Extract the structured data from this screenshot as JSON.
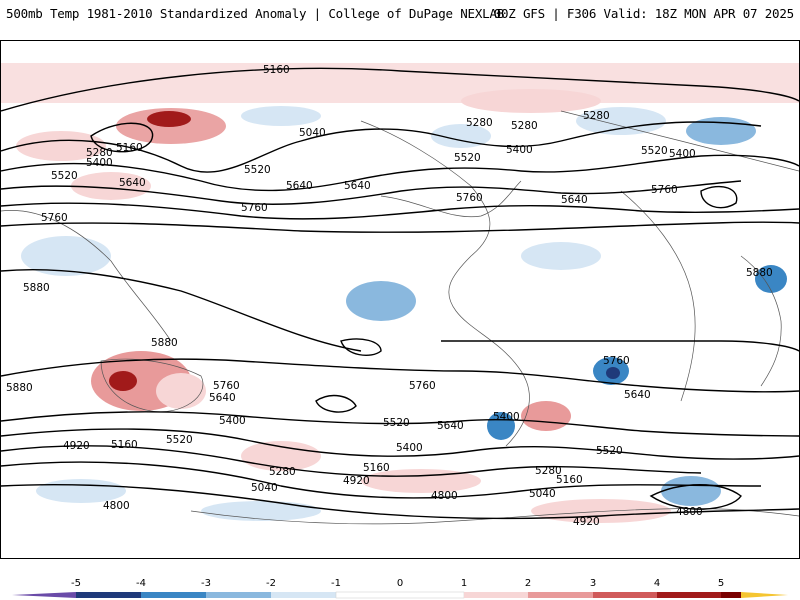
{
  "header": {
    "title": "500mb Temp 1981-2010 Standardized Anomaly | College of DuPage NEXLAB",
    "run_info": "00Z GFS | F306 Valid: 18Z MON APR 07 2025"
  },
  "colors": {
    "neg5": "#6a4ba8",
    "neg4": "#1f3a7a",
    "neg3": "#3a86c4",
    "neg2": "#8ab8de",
    "neg1": "#d6e6f4",
    "zero": "#ffffff",
    "pos1": "#f7d6d6",
    "pos2": "#e89a9a",
    "pos3": "#d05a5a",
    "pos4": "#a11a1a",
    "pos5": "#7a0000",
    "pos_end": "#f5c531",
    "contour": "#000000",
    "coast": "#555555"
  },
  "colorbar": {
    "ticks": [
      "-5",
      "-4",
      "-3",
      "-2",
      "-1",
      "0",
      "1",
      "2",
      "3",
      "4",
      "5"
    ]
  },
  "contour_labels": [
    {
      "text": "5160"
    },
    {
      "text": "5040"
    },
    {
      "text": "5160"
    },
    {
      "text": "5280"
    },
    {
      "text": "5280"
    },
    {
      "text": "5400"
    },
    {
      "text": "5520"
    },
    {
      "text": "5640"
    },
    {
      "text": "5280"
    },
    {
      "text": "5400"
    },
    {
      "text": "5520"
    },
    {
      "text": "5280"
    },
    {
      "text": "5400"
    },
    {
      "text": "5520"
    },
    {
      "text": "5640"
    },
    {
      "text": "5760"
    },
    {
      "text": "5520"
    },
    {
      "text": "5640"
    },
    {
      "text": "5760"
    },
    {
      "text": "5760"
    },
    {
      "text": "5640"
    },
    {
      "text": "5760"
    },
    {
      "text": "5880"
    },
    {
      "text": "5880"
    },
    {
      "text": "5880"
    },
    {
      "text": "5880"
    },
    {
      "text": "5760"
    },
    {
      "text": "5640"
    },
    {
      "text": "5400"
    },
    {
      "text": "5520"
    },
    {
      "text": "5160"
    },
    {
      "text": "4920"
    },
    {
      "text": "5280"
    },
    {
      "text": "5040"
    },
    {
      "text": "5160"
    },
    {
      "text": "4920"
    },
    {
      "text": "4800"
    },
    {
      "text": "4800"
    },
    {
      "text": "5760"
    },
    {
      "text": "5520"
    },
    {
      "text": "5640"
    },
    {
      "text": "5400"
    },
    {
      "text": "5280"
    },
    {
      "text": "5160"
    },
    {
      "text": "5040"
    },
    {
      "text": "5760"
    },
    {
      "text": "5640"
    },
    {
      "text": "5520"
    },
    {
      "text": "4800"
    },
    {
      "text": "4920"
    },
    {
      "text": "5400"
    }
  ]
}
